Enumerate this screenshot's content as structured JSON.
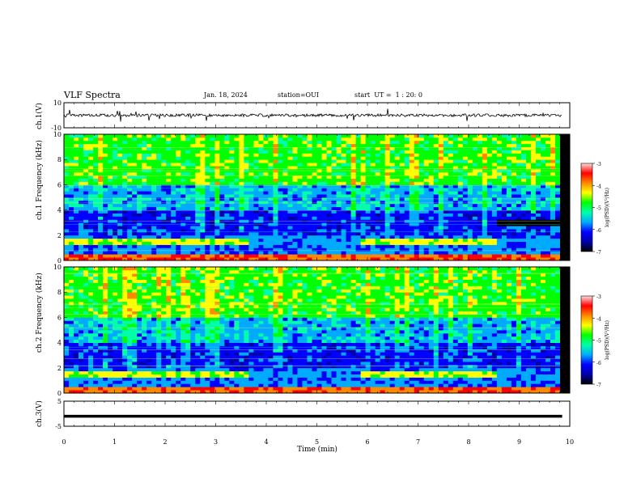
{
  "header": {
    "title": "VLF Spectra",
    "date": "Jan. 18, 2024",
    "station": "station=OUI",
    "start": "start  UT =  1 : 20: 0"
  },
  "chart_data": [
    {
      "type": "line",
      "panel": "ch1-waveform",
      "ylabel": "ch.1(V)",
      "ylim": [
        -10,
        10
      ],
      "ytick_labels": [
        "10",
        "-10"
      ],
      "baseline_value": 0,
      "xlim": [
        0,
        10
      ]
    },
    {
      "type": "heatmap",
      "panel": "ch1-spectrogram",
      "ylabel": "ch.1 Frequency (kHz)",
      "ylim": [
        0,
        10
      ],
      "ytick_labels": [
        "0",
        "2",
        "4",
        "6",
        "8",
        "10"
      ],
      "xlim": [
        0,
        10
      ],
      "colorbar": {
        "label": "log(PSD)(V²/Hz)",
        "range": [
          -7,
          -3
        ],
        "tick_labels": [
          "-3",
          "-4",
          "-5",
          "-6",
          "-7"
        ],
        "colors": [
          "#000000",
          "#0000aa",
          "#0000ff",
          "#00aaff",
          "#00ffaa",
          "#00ff00",
          "#ffff00",
          "#ff8800",
          "#ff0000",
          "#ffdddd"
        ]
      }
    },
    {
      "type": "heatmap",
      "panel": "ch2-spectrogram",
      "ylabel": "ch.2 Frequency (kHz)",
      "ylim": [
        0,
        10
      ],
      "ytick_labels": [
        "0",
        "2",
        "4",
        "6",
        "8",
        "10"
      ],
      "xlim": [
        0,
        10
      ],
      "colorbar": {
        "label": "log(PSD)(V²/Hz)",
        "range": [
          -7,
          -3
        ],
        "tick_labels": [
          "-3",
          "-4",
          "-5",
          "-6",
          "-7"
        ]
      }
    },
    {
      "type": "line",
      "panel": "ch3-waveform",
      "ylabel": "ch.3(V)",
      "ylim": [
        -5,
        5
      ],
      "ytick_labels": [
        "5",
        "-5"
      ],
      "baseline_value": -1,
      "xlim": [
        0,
        10
      ],
      "xlabel": "Time (min)",
      "xtick_labels": [
        "0",
        "1",
        "2",
        "3",
        "4",
        "5",
        "6",
        "7",
        "8",
        "9",
        "10"
      ]
    }
  ]
}
